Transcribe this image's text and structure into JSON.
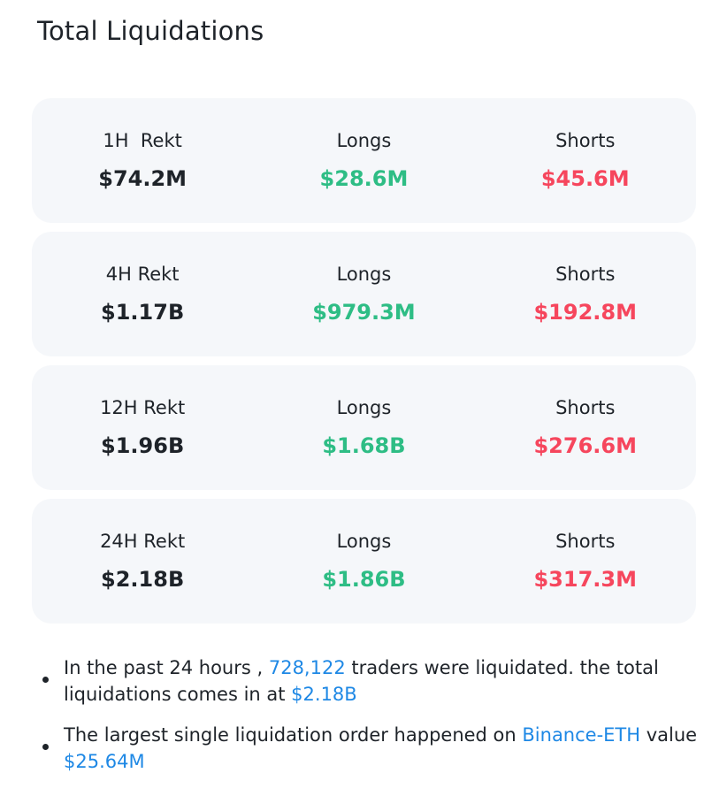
{
  "title": "Total Liquidations",
  "colors": {
    "long": "#2ebd85",
    "short": "#f6465d",
    "highlight": "#1e88e5",
    "card_bg": "#f5f7fa"
  },
  "cards": [
    {
      "period_label": "1H  Rekt",
      "total": "$74.2M",
      "longs_label": "Longs",
      "longs": "$28.6M",
      "shorts_label": "Shorts",
      "shorts": "$45.6M"
    },
    {
      "period_label": "4H Rekt",
      "total": "$1.17B",
      "longs_label": "Longs",
      "longs": "$979.3M",
      "shorts_label": "Shorts",
      "shorts": "$192.8M"
    },
    {
      "period_label": "12H Rekt",
      "total": "$1.96B",
      "longs_label": "Longs",
      "longs": "$1.68B",
      "shorts_label": "Shorts",
      "shorts": "$276.6M"
    },
    {
      "period_label": "24H Rekt",
      "total": "$2.18B",
      "longs_label": "Longs",
      "longs": "$1.86B",
      "shorts_label": "Shorts",
      "shorts": "$317.3M"
    }
  ],
  "notes": {
    "traders": {
      "prefix": "In the past 24 hours , ",
      "count": "728,122",
      "middle": " traders were liquidated. the total liquidations comes in at ",
      "total": "$2.18B"
    },
    "largest": {
      "prefix": "The largest single liquidation order happened on ",
      "exchange": "Binance-ETH",
      "middle": " value ",
      "value": "$25.64M"
    }
  }
}
